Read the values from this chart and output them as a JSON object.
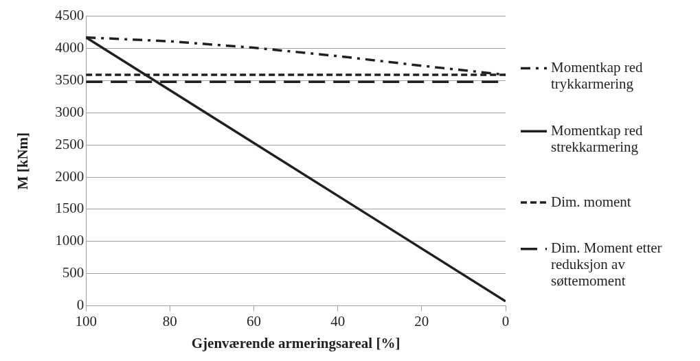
{
  "chart_data": {
    "type": "line",
    "xlabel": "Gjenværende armeringsareal [%]",
    "ylabel": "M [kNm]",
    "xlim": [
      100,
      0
    ],
    "xticks": [
      100,
      80,
      60,
      40,
      20,
      0
    ],
    "ylim": [
      0,
      4500
    ],
    "yticks": [
      0,
      500,
      1000,
      1500,
      2000,
      2500,
      3000,
      3500,
      4000,
      4500
    ],
    "grid": "y",
    "legend": "right",
    "marker": "none",
    "series": [
      {
        "name": "Momentkap red trykkarmering",
        "color": "#231f20",
        "line_style": "dashdot",
        "x": [
          100,
          80,
          60,
          40,
          20,
          0
        ],
        "values": [
          4170,
          4110,
          4010,
          3880,
          3730,
          3590
        ]
      },
      {
        "name": "Momentkap red strekkarmering",
        "color": "#231f20",
        "line_style": "solid",
        "x": [
          100,
          0
        ],
        "values": [
          4170,
          70
        ]
      },
      {
        "name": "Dim. moment",
        "color": "#231f20",
        "line_style": "dashed",
        "x": [
          100,
          0
        ],
        "values": [
          3590,
          3590
        ]
      },
      {
        "name": "Dim. Moment etter reduksjon av søttemoment",
        "color": "#231f20",
        "line_style": "longdash",
        "x": [
          100,
          0
        ],
        "values": [
          3480,
          3480
        ]
      }
    ]
  }
}
